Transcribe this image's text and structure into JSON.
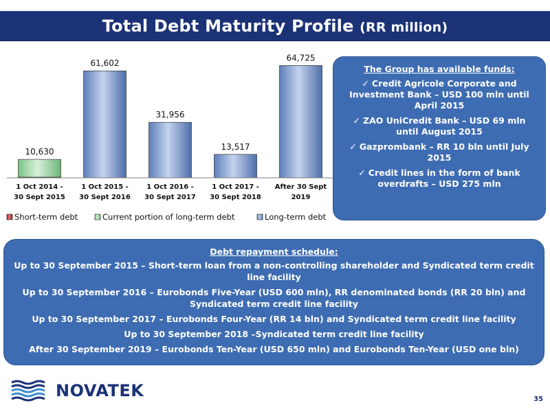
{
  "title": "Total Debt Maturity Profile",
  "title_unit": "(RR million)",
  "chart_data": {
    "type": "bar",
    "stacked": true,
    "categories": [
      [
        "1 Oct 2014 -",
        "30 Sept 2015"
      ],
      [
        "1 Oct 2015 -",
        "30 Sept 2016"
      ],
      [
        "1 Oct 2016 -",
        "30 Sept 2017"
      ],
      [
        "1 Oct 2017 -",
        "30 Sept 2018"
      ],
      [
        "After 30 Sept",
        "2019"
      ]
    ],
    "series": [
      {
        "name": "Short-term debt",
        "color": "#c0282d",
        "values": [
          400,
          0,
          0,
          0,
          0
        ]
      },
      {
        "name": "Current portion of long-term debt",
        "color": "#9fd7a6",
        "values": [
          10230,
          0,
          0,
          0,
          0
        ]
      },
      {
        "name": "Long-term debt",
        "color": "#7d99c9",
        "values": [
          0,
          61602,
          31956,
          13517,
          64725
        ]
      }
    ],
    "totals": [
      "10,630",
      "61,602",
      "31,956",
      "13,517",
      "64,725"
    ],
    "ylim": [
      0,
      70000
    ],
    "legend_position": "bottom",
    "grid": false
  },
  "info_box": {
    "heading": "The Group has available funds:",
    "check_icon": "check-icon",
    "items": [
      "Credit Agricole Corporate and Investment Bank – USD 100 mln until April 2015",
      "ZAO UniCredit Bank – USD 69 mln until August 2015",
      "Gazprombank – RR 10 bln until July 2015",
      "Credit lines in the form of bank overdrafts – USD 275 mln"
    ]
  },
  "schedule": {
    "heading": "Debt repayment schedule:",
    "items": [
      "Up to 30 September 2015 – Short-term loan from a non-controlling shareholder and Syndicated term credit line facility",
      "Up to 30 September 2016 – Eurobonds Five-Year (USD 600 mln), RR denominated bonds (RR 20 bln) and Syndicated term credit line facility",
      "Up to 30 September 2017 – Eurobonds Four-Year (RR 14 bln) and Syndicated term credit line facility",
      "Up to 30 September 2018 –Syndicated term credit line facility",
      "After 30 September 2019 – Eurobonds Ten-Year (USD 650 mln) and Eurobonds Ten-Year (USD one bln)"
    ]
  },
  "logo": {
    "text": "NOVATEK",
    "icon": "novatek-logo-icon"
  },
  "page_number": "35",
  "colors": {
    "navy": "#1c3277",
    "box_blue": "#3e6cb2"
  }
}
